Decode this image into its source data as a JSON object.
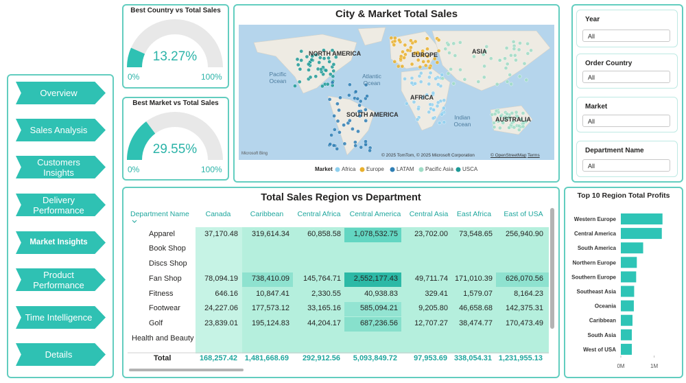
{
  "nav": [
    "Overview",
    "Sales Analysis",
    "Customers Insights",
    "Delivery Performance",
    "Market Insights",
    "Product Performance",
    "Time Intelligence",
    "Details"
  ],
  "gauges": [
    {
      "title": "Best Country vs Total Sales",
      "value": 13.27,
      "value_label": "13.27%",
      "min": {
        "value": 0,
        "label": "0%"
      },
      "max": {
        "value": 100,
        "label": "100%"
      }
    },
    {
      "title": "Best Market vs Total Sales",
      "value": 29.55,
      "value_label": "29.55%",
      "min": {
        "value": 0,
        "label": "0%"
      },
      "max": {
        "value": 100,
        "label": "100%"
      }
    }
  ],
  "map": {
    "title": "City & Market Total Sales",
    "labels": [
      "NORTH AMERICA",
      "Pacific Ocean",
      "Atlantic Ocean",
      "EUROPE",
      "ASIA",
      "AFRICA",
      "SOUTH AMERICA",
      "Indian Ocean",
      "AUSTRALIA"
    ],
    "logo": "Microsoft Bing",
    "attribution": "© 2025 TomTom, © 2025 Microsoft Corporation",
    "links": [
      "© OpenStreetMap",
      "Terms"
    ],
    "legend_title": "Market",
    "legend": [
      {
        "name": "Africa",
        "color": "#8fd0ee"
      },
      {
        "name": "Europe",
        "color": "#e9b02c"
      },
      {
        "name": "LATAM",
        "color": "#2f7fb5"
      },
      {
        "name": "Pacific Asia",
        "color": "#9fdcc6"
      },
      {
        "name": "USCA",
        "color": "#1f9a97"
      }
    ]
  },
  "filters": [
    {
      "label": "Year",
      "value": "All"
    },
    {
      "label": "Order Country",
      "value": "All"
    },
    {
      "label": "Market",
      "value": "All"
    },
    {
      "label": "Department Name",
      "value": "All"
    }
  ],
  "table": {
    "title": "Total Sales Region vs Department",
    "header": [
      "Department Name",
      "Canada",
      "Caribbean",
      "Central Africa",
      "Central America",
      "Central Asia",
      "East Africa",
      "East of USA"
    ],
    "rows": [
      [
        "Apparel",
        "37,170.48",
        "319,614.34",
        "60,858.58",
        "1,078,532.75",
        "23,702.00",
        "73,548.65",
        "256,940.90"
      ],
      [
        "Book Shop",
        null,
        null,
        null,
        null,
        null,
        null,
        null
      ],
      [
        "Discs Shop",
        null,
        null,
        null,
        null,
        null,
        null,
        null
      ],
      [
        "Fan Shop",
        "78,094.19",
        "738,410.09",
        "145,764.71",
        "2,552,177.43",
        "49,711.74",
        "171,010.39",
        "626,070.56"
      ],
      [
        "Fitness",
        "646.16",
        "10,847.41",
        "2,330.55",
        "40,938.83",
        "329.41",
        "1,579.07",
        "8,164.23"
      ],
      [
        "Footwear",
        "24,227.06",
        "177,573.12",
        "33,165.16",
        "585,094.21",
        "9,205.80",
        "46,658.68",
        "142,375.31"
      ],
      [
        "Golf",
        "23,839.01",
        "195,124.83",
        "44,204.17",
        "687,236.56",
        "12,707.27",
        "38,474.77",
        "170,473.49"
      ],
      [
        "Health and Beauty",
        null,
        null,
        null,
        null,
        null,
        null,
        null
      ]
    ],
    "total": [
      "Total",
      "168,257.42",
      "1,481,668.69",
      "292,912.56",
      "5,093,849.72",
      "97,953.69",
      "338,054.31",
      "1,231,955.13"
    ]
  },
  "chart_data": {
    "type": "bar",
    "orientation": "horizontal",
    "title": "Top 10 Region Total Profits",
    "categories": [
      "Western Europe",
      "Central America",
      "South America",
      "Northern Europe",
      "Southern Europe",
      "Southeast Asia",
      "Oceania",
      "Caribbean",
      "South Asia",
      "West of USA"
    ],
    "values": [
      1250000,
      1230000,
      670000,
      480000,
      460000,
      400000,
      390000,
      350000,
      330000,
      330000
    ],
    "color": "#2ec4b6",
    "xlim": [
      0,
      1750000
    ],
    "xticks": [
      {
        "value": 0,
        "label": "0M"
      },
      {
        "value": 1000000,
        "label": "1M"
      }
    ]
  }
}
